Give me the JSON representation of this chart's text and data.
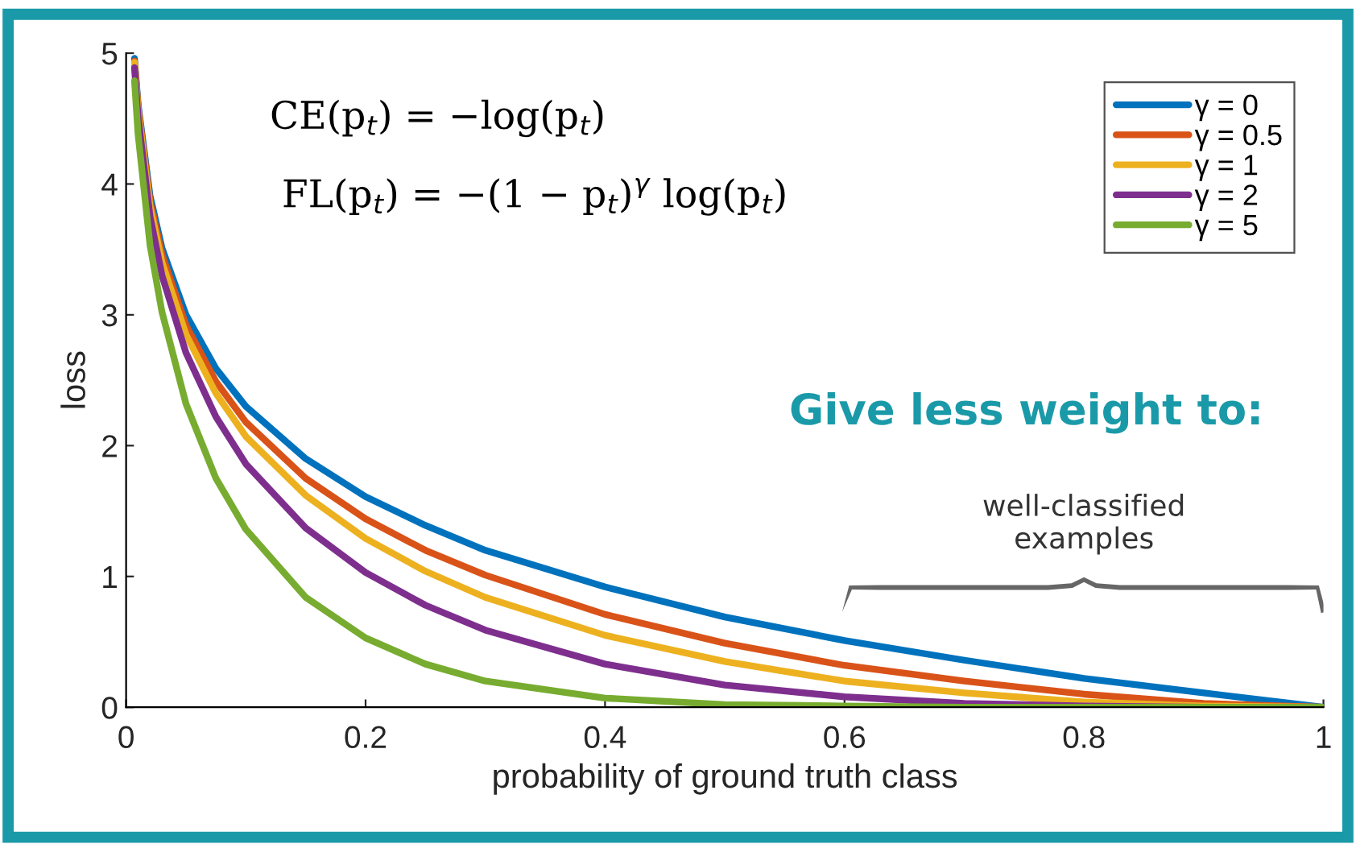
{
  "chart_data": {
    "type": "line",
    "xlabel": "probability of ground truth class",
    "ylabel": "loss",
    "x": [
      0.007,
      0.01,
      0.02,
      0.03,
      0.05,
      0.075,
      0.1,
      0.15,
      0.2,
      0.25,
      0.3,
      0.4,
      0.5,
      0.6,
      0.7,
      0.8,
      0.9,
      1.0
    ],
    "series": [
      {
        "name": "γ = 0",
        "color": "#0072bd",
        "values": [
          4.96,
          4.61,
          3.91,
          3.51,
          3.0,
          2.59,
          2.3,
          1.9,
          1.61,
          1.39,
          1.2,
          0.92,
          0.69,
          0.51,
          0.36,
          0.22,
          0.11,
          0
        ]
      },
      {
        "name": "γ = 0.5",
        "color": "#d95319",
        "values": [
          4.94,
          4.59,
          3.87,
          3.46,
          2.92,
          2.49,
          2.18,
          1.75,
          1.44,
          1.2,
          1.01,
          0.71,
          0.49,
          0.32,
          0.2,
          0.1,
          0.03,
          0
        ]
      },
      {
        "name": "γ = 1",
        "color": "#edb120",
        "values": [
          4.93,
          4.56,
          3.83,
          3.4,
          2.85,
          2.4,
          2.07,
          1.62,
          1.29,
          1.04,
          0.84,
          0.55,
          0.35,
          0.2,
          0.11,
          0.04,
          0.01,
          0
        ]
      },
      {
        "name": "γ = 2",
        "color": "#7e2f8e",
        "values": [
          4.89,
          4.51,
          3.75,
          3.3,
          2.71,
          2.22,
          1.86,
          1.37,
          1.03,
          0.78,
          0.59,
          0.33,
          0.17,
          0.08,
          0.03,
          0.01,
          0,
          0
        ]
      },
      {
        "name": "γ = 5",
        "color": "#77ac30",
        "values": [
          4.79,
          4.38,
          3.53,
          3.02,
          2.32,
          1.75,
          1.36,
          0.84,
          0.53,
          0.33,
          0.2,
          0.07,
          0.02,
          0.01,
          0,
          0,
          0,
          0
        ]
      }
    ],
    "xlim": [
      0,
      1
    ],
    "ylim": [
      0,
      5
    ],
    "xticks": [
      0,
      0.2,
      0.4,
      0.6,
      0.8,
      1
    ],
    "yticks": [
      0,
      1,
      2,
      3,
      4,
      5
    ],
    "grid": false,
    "legend": "top right",
    "marker": "none",
    "line_style": "solid",
    "annotations": [
      "CE(p$_{t}$) = −log(p$_{t}$)",
      "FL(p$_{t}$) = −(1 − p$_{t}$)$^{γ}$ log(p$_{t}$)",
      "Give less weight to:",
      "well-classified\nexamples"
    ]
  }
}
